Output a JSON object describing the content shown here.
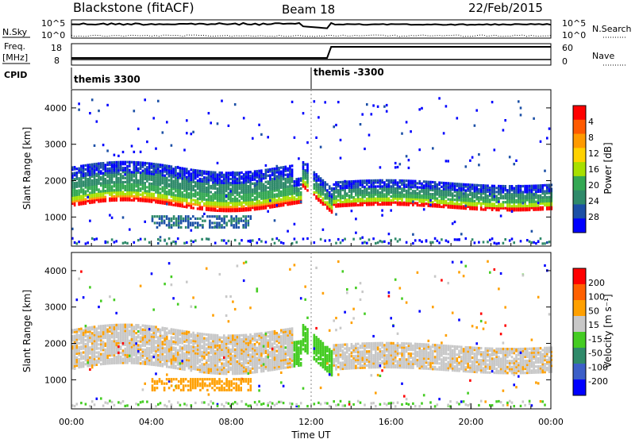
{
  "header": {
    "title": "Blackstone (fitACF)",
    "beam": "Beam 18",
    "date": "22/Feb/2015"
  },
  "top_panels": {
    "nsky": {
      "label": "N.Sky",
      "ticks": [
        "10^5",
        "10^0"
      ],
      "right_label": "N.Search",
      "right_ticks": [
        "10^5",
        "10^0"
      ]
    },
    "freq": {
      "label_line1": "Freq.",
      "label_line2": "[MHz]",
      "ticks": [
        "18",
        "8"
      ],
      "right_label": "Nave",
      "right_ticks": [
        "60",
        "0"
      ]
    },
    "cpid": {
      "label": "CPID",
      "segments": [
        {
          "text": "themis 3300",
          "start_hour": 0
        },
        {
          "text": "themis -3300",
          "start_hour": 12
        }
      ]
    }
  },
  "chart_data": [
    {
      "type": "heatmap",
      "parameter": "Power",
      "ylabel": "Slant Range [km]",
      "xlabel": "Time UT",
      "xlim": [
        0,
        24
      ],
      "ylim": [
        200,
        4500
      ],
      "yticks": [
        "1000",
        "2000",
        "3000",
        "4000"
      ],
      "colorbar_label": "Power [dB]",
      "colorbar_ticks": [
        "4",
        "8",
        "12",
        "16",
        "20",
        "24",
        "28"
      ],
      "colors": [
        "#0000ff",
        "#1c50a6",
        "#2f8a6a",
        "#34a853",
        "#a8e000",
        "#ffd200",
        "#ff9a00",
        "#ff5a00",
        "#ff0000"
      ]
    },
    {
      "type": "heatmap",
      "parameter": "Velocity",
      "ylabel": "Slant Range [km]",
      "xlabel": "Time UT",
      "xlim": [
        0,
        24
      ],
      "ylim": [
        200,
        4500
      ],
      "yticks": [
        "1000",
        "2000",
        "3000",
        "4000"
      ],
      "xticks": [
        "00:00",
        "04:00",
        "08:00",
        "12:00",
        "16:00",
        "20:00",
        "00:00"
      ],
      "colorbar_label": "Velocity [m s⁻¹]",
      "colorbar_ticks": [
        "200",
        "100",
        "50",
        "15",
        "-15",
        "-50",
        "-100",
        "-200"
      ],
      "colors": [
        "#0000ff",
        "#3c5fc8",
        "#2f8a6a",
        "#44cc22",
        "#c8c8c8",
        "#ffa000",
        "#ff6000",
        "#ff0000"
      ]
    }
  ]
}
